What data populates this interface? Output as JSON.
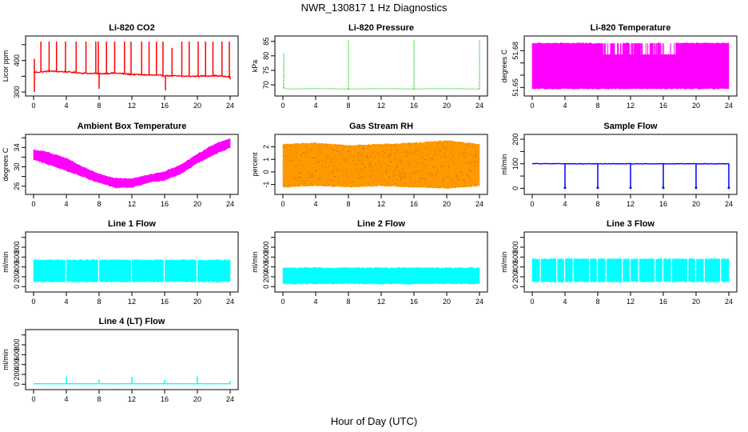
{
  "figure": {
    "title": "NWR_130817  1 Hz Diagnostics",
    "xlabel": "Hour of Day (UTC)"
  },
  "chart_data": [
    {
      "type": "line",
      "name": "co2",
      "title": "Li-820 CO2",
      "ylabel": "Licor ppm",
      "color": "#ff0000",
      "xlim": [
        0,
        24
      ],
      "xticks": [
        0,
        4,
        8,
        12,
        16,
        20,
        24
      ],
      "ylim": [
        295,
        470
      ],
      "yticks": [
        300,
        350,
        400,
        450
      ],
      "ytick_labels": [
        "300",
        "",
        "400",
        ""
      ],
      "series": [
        {
          "x": [
            0,
            2,
            4,
            6,
            8,
            10,
            12,
            14,
            16,
            18,
            20,
            22,
            24
          ],
          "y": [
            362,
            366,
            364,
            360,
            358,
            360,
            356,
            354,
            352,
            350,
            350,
            352,
            348
          ]
        }
      ],
      "spikes": [
        {
          "x": [
            0.1,
            0.9,
            1.9,
            2.8,
            3.9,
            5.2,
            6.4,
            7.6,
            7.9,
            8.9,
            9.9,
            11.1,
            11.9,
            13.2,
            14.1,
            15.0,
            15.8,
            16.9,
            18.1,
            19.0,
            20.1,
            21.0,
            21.9,
            23.0,
            23.9
          ],
          "y": [
            405,
            460,
            460,
            460,
            460,
            460,
            460,
            460,
            460,
            460,
            460,
            460,
            460,
            460,
            460,
            460,
            460,
            440,
            460,
            460,
            460,
            460,
            460,
            460,
            460
          ]
        }
      ],
      "dips": [
        {
          "x": [
            0.1,
            8.0,
            16.1,
            24.0
          ],
          "y": [
            300,
            310,
            305,
            340
          ]
        }
      ]
    },
    {
      "type": "line",
      "name": "pressure",
      "title": "Li-820 Pressure",
      "ylabel": "kPa",
      "color": "#00cc00",
      "xlim": [
        0,
        24
      ],
      "xticks": [
        0,
        4,
        8,
        12,
        16,
        20,
        24
      ],
      "ylim": [
        67,
        86
      ],
      "yticks": [
        70,
        75,
        80,
        85
      ],
      "ytick_labels": [
        "70",
        "75",
        "80",
        "85"
      ],
      "series": [
        {
          "x": [
            0,
            0.5,
            4,
            8,
            12,
            16,
            20,
            24
          ],
          "y": [
            69,
            68.6,
            68.7,
            68.6,
            68.7,
            68.6,
            68.7,
            68.6
          ]
        }
      ],
      "spikes": [
        {
          "x": [
            0.1,
            8.0,
            16.0,
            24.0
          ],
          "y": [
            81,
            85.5,
            85.5,
            85.5
          ]
        }
      ]
    },
    {
      "type": "area",
      "name": "li820-temp",
      "title": "Li-820 Temperature",
      "ylabel": "degrees C",
      "color": "#ff00ff",
      "xlim": [
        0,
        24
      ],
      "xticks": [
        0,
        4,
        8,
        12,
        16,
        20,
        24
      ],
      "ylim": [
        51.645,
        51.69
      ],
      "yticks": [
        51.65,
        51.66,
        51.67,
        51.68
      ],
      "ytick_labels": [
        "51.65",
        "",
        "",
        "51.68"
      ],
      "series": [
        {
          "x": [
            0,
            24
          ],
          "y_low": [
            51.649,
            51.649
          ],
          "y_high": [
            51.686,
            51.686
          ]
        }
      ],
      "gaps": [
        {
          "x_start": 8.6,
          "x_end": 9.6,
          "y_top": 51.677
        },
        {
          "x_start": 10.1,
          "x_end": 11.0,
          "y_top": 51.677
        },
        {
          "x_start": 11.9,
          "x_end": 12.5,
          "y_top": 51.677
        },
        {
          "x_start": 13.2,
          "x_end": 14.4,
          "y_top": 51.677
        },
        {
          "x_start": 14.8,
          "x_end": 15.3,
          "y_top": 51.677
        },
        {
          "x_start": 15.6,
          "x_end": 17.5,
          "y_top": 51.677
        }
      ]
    },
    {
      "type": "area",
      "name": "ambient-temp",
      "title": "Ambient Box Temperature",
      "ylabel": "degrees C",
      "color": "#ff00ff",
      "xlim": [
        0,
        24
      ],
      "xticks": [
        0,
        4,
        8,
        12,
        16,
        20,
        24
      ],
      "ylim": [
        24.8,
        36.2
      ],
      "yticks": [
        26,
        28,
        30,
        32,
        34,
        36
      ],
      "ytick_labels": [
        "26",
        "",
        "30",
        "",
        "34",
        ""
      ],
      "series": [
        {
          "x": [
            0,
            2,
            4,
            6,
            8,
            10,
            12,
            14,
            16,
            18,
            20,
            22,
            24
          ],
          "y_low": [
            31.5,
            30.4,
            29.2,
            28.0,
            26.7,
            25.7,
            25.8,
            26.7,
            27.3,
            28.6,
            30.8,
            32.5,
            34.0
          ],
          "y_high": [
            33.5,
            32.9,
            31.7,
            30.0,
            28.5,
            27.6,
            27.5,
            28.3,
            29.0,
            30.4,
            32.6,
            34.6,
            35.8
          ]
        }
      ]
    },
    {
      "type": "area",
      "name": "gas-rh",
      "title": "Gas Stream RH",
      "ylabel": "percent",
      "color": "#ff9900",
      "dot_color": "#996600",
      "xlim": [
        0,
        24
      ],
      "xticks": [
        0,
        4,
        8,
        12,
        16,
        20,
        24
      ],
      "ylim": [
        -1.6,
        2.8
      ],
      "yticks": [
        -1,
        0,
        1,
        2
      ],
      "ytick_labels": [
        "-1",
        "0",
        "1",
        "2"
      ],
      "series": [
        {
          "x": [
            0,
            4,
            8,
            12,
            16,
            20,
            24
          ],
          "y_low": [
            -1.2,
            -1.1,
            -1.2,
            -1.1,
            -1.2,
            -1.3,
            -1.1
          ],
          "y_high": [
            2.2,
            2.3,
            2.1,
            2.2,
            2.3,
            2.5,
            2.2
          ]
        }
      ]
    },
    {
      "type": "line",
      "name": "sample-flow",
      "title": "Sample Flow",
      "ylabel": "ml/min",
      "color": "#0000ff",
      "xlim": [
        0,
        24
      ],
      "xticks": [
        0,
        4,
        8,
        12,
        16,
        20,
        24
      ],
      "ylim": [
        -15,
        210
      ],
      "yticks": [
        0,
        50,
        100,
        150,
        200
      ],
      "ytick_labels": [
        "0",
        "",
        "100",
        "",
        "200"
      ],
      "series": [
        {
          "x": [
            0,
            4,
            8,
            12,
            16,
            20,
            24
          ],
          "y": [
            101,
            100,
            100,
            100,
            100,
            100,
            100
          ]
        }
      ],
      "dips": [
        {
          "x": [
            4.0,
            8.0,
            12.0,
            16.0,
            20.0,
            24.0
          ],
          "y": [
            2,
            2,
            2,
            2,
            2,
            2
          ]
        }
      ]
    },
    {
      "type": "area",
      "name": "line1-flow",
      "title": "Line 1 Flow",
      "ylabel": "ml/min",
      "color": "#00ffff",
      "xlim": [
        0,
        24
      ],
      "xticks": [
        0,
        4,
        8,
        12,
        16,
        20,
        24
      ],
      "ylim": [
        -60,
        1060
      ],
      "yticks": [
        0,
        200,
        400,
        600,
        800,
        1000
      ],
      "ytick_labels": [
        "0",
        "200",
        "400",
        "600",
        "800",
        ""
      ],
      "series": [
        {
          "x": [
            0,
            24
          ],
          "y_low": [
            100,
            100
          ],
          "y_high": [
            540,
            540
          ]
        }
      ],
      "gaps": [
        {
          "x": [
            3.95,
            7.95,
            11.95,
            15.95,
            19.95
          ]
        }
      ]
    },
    {
      "type": "area",
      "name": "line2-flow",
      "title": "Line 2 Flow",
      "ylabel": "ml/min",
      "color": "#00ffff",
      "xlim": [
        0,
        24
      ],
      "xticks": [
        0,
        4,
        8,
        12,
        16,
        20,
        24
      ],
      "ylim": [
        -60,
        1060
      ],
      "yticks": [
        0,
        200,
        400,
        600,
        800,
        1000
      ],
      "ytick_labels": [
        "0",
        "200",
        "400",
        "600",
        "800",
        ""
      ],
      "series": [
        {
          "x": [
            0,
            24
          ],
          "y_low": [
            60,
            60
          ],
          "y_high": [
            380,
            380
          ]
        }
      ]
    },
    {
      "type": "area",
      "name": "line3-flow",
      "title": "Line 3 Flow",
      "ylabel": "ml/min",
      "color": "#00ffff",
      "xlim": [
        0,
        24
      ],
      "xticks": [
        0,
        4,
        8,
        12,
        16,
        20,
        24
      ],
      "ylim": [
        -60,
        1060
      ],
      "yticks": [
        0,
        200,
        400,
        600,
        800,
        1000
      ],
      "ytick_labels": [
        "0",
        "200",
        "400",
        "600",
        "800",
        ""
      ],
      "series": [
        {
          "x": [
            0,
            24
          ],
          "y_low": [
            100,
            100
          ],
          "y_high": [
            560,
            560
          ]
        }
      ],
      "gaps": [
        {
          "x": [
            1.0,
            3.0,
            3.95,
            5.0,
            7.0,
            7.95,
            9.0,
            11.0,
            11.95,
            13.0,
            15.0,
            15.95,
            17.0,
            19.0,
            19.95,
            21.0,
            23.0
          ]
        }
      ]
    },
    {
      "type": "line",
      "name": "line4-flow",
      "title": "Line 4 (LT) Flow",
      "ylabel": "ml/min",
      "color": "#00ffff",
      "xlim": [
        0,
        24
      ],
      "xticks": [
        0,
        4,
        8,
        12,
        16,
        20,
        24
      ],
      "ylim": [
        -60,
        1060
      ],
      "yticks": [
        0,
        200,
        400,
        600,
        800,
        1000
      ],
      "ytick_labels": [
        "0",
        "200",
        "400",
        "600",
        "800",
        ""
      ],
      "series": [
        {
          "x": [
            0,
            24
          ],
          "y": [
            10,
            10
          ]
        }
      ],
      "spikes": [
        {
          "x": [
            4.0,
            8.0,
            12.0,
            16.0,
            20.0,
            24.0
          ],
          "y": [
            160,
            100,
            150,
            90,
            160,
            70
          ]
        }
      ]
    }
  ]
}
